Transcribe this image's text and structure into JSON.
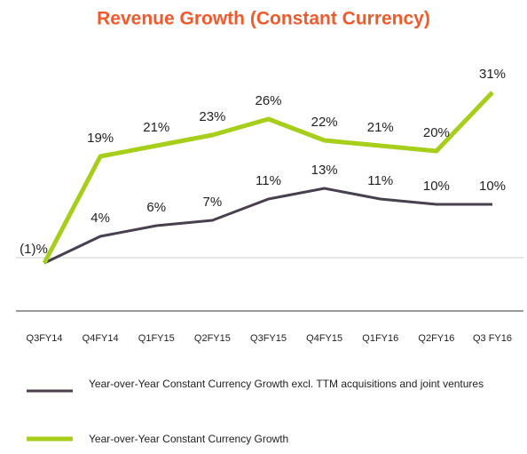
{
  "chart_data": {
    "type": "line",
    "title": "Revenue Growth (Constant Currency)",
    "categories": [
      "Q3FY14",
      "Q4FY14",
      "Q1FY15",
      "Q2FY15",
      "Q3FY15",
      "Q4FY15",
      "Q1FY16",
      "Q2FY16",
      "Q3 FY16"
    ],
    "series": [
      {
        "name": "Year-over-Year Constant Currency Growth excl. TTM acquisitions and joint ventures",
        "color": "#4a3f4f",
        "values": [
          -1,
          4,
          6,
          7,
          11,
          13,
          11,
          10,
          10
        ],
        "value_labels": [
          "(1)%",
          "4%",
          "6%",
          "7%",
          "11%",
          "13%",
          "11%",
          "10%",
          "10%"
        ]
      },
      {
        "name": "Year-over-Year Constant Currency Growth",
        "color": "#a6ce1a",
        "values": [
          -1,
          19,
          21,
          23,
          26,
          22,
          21,
          20,
          31
        ],
        "value_labels": [
          null,
          "19%",
          "21%",
          "23%",
          "26%",
          "22%",
          "21%",
          "20%",
          "31%"
        ]
      }
    ]
  }
}
